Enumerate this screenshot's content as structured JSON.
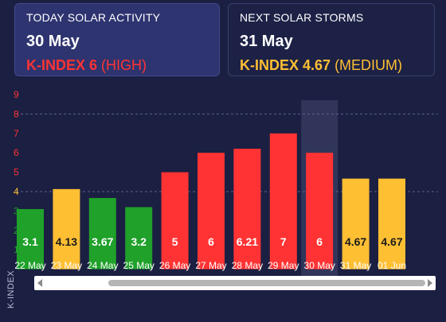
{
  "today": {
    "label": "TODAY SOLAR ACTIVITY",
    "date": "30 May",
    "kindex": "K-INDEX 6",
    "level": "(HIGH)"
  },
  "next": {
    "label": "NEXT SOLAR STORMS",
    "date": "31 May",
    "kindex": "K-INDEX 4.67",
    "level": "(MEDIUM)"
  },
  "colors": {
    "background": "#1b1f42",
    "high": "#ff3333",
    "medium": "#ffbf33",
    "low": "#1fa12a",
    "highlight": "#3a3e63"
  },
  "chart_data": {
    "type": "bar",
    "categories": [
      "22 May",
      "23 May",
      "24 May",
      "25 May",
      "26 May",
      "27 May",
      "28 May",
      "29 May",
      "30 May",
      "31 May",
      "01 Jun"
    ],
    "values": [
      3.1,
      4.13,
      3.67,
      3.2,
      5,
      6,
      6.21,
      7,
      6,
      4.67,
      4.67
    ],
    "labels": [
      "3.1",
      "4.13",
      "3.67",
      "3.2",
      "5",
      "6",
      "6.21",
      "7",
      "6",
      "4.67",
      "4.67"
    ],
    "ylabel": "K-INDEX",
    "yticks": [
      1,
      2,
      3,
      4,
      5,
      6,
      7,
      8,
      9
    ],
    "ylim": [
      0,
      9
    ],
    "highlighted_category": "30 May",
    "grid": false
  }
}
